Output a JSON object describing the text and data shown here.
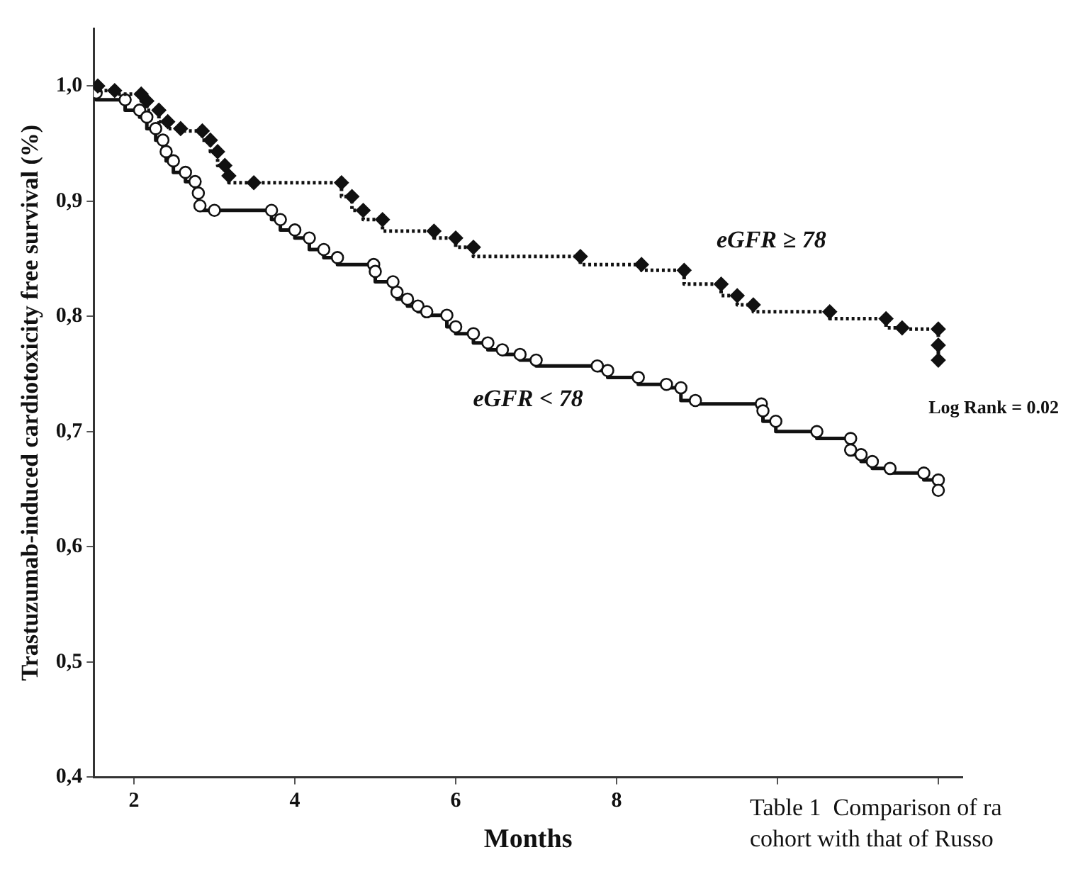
{
  "chart_data": {
    "type": "step",
    "xlabel": "Months",
    "ylabel": "Trastuzumab-induced cardiotoxicity free survival (%)",
    "xlim": [
      1.5,
      12.3
    ],
    "xticks": [
      2,
      4,
      6,
      8,
      {
        "value": 10,
        "label": null
      },
      {
        "value": 12,
        "label": null
      }
    ],
    "ylim": [
      0.4,
      1.05
    ],
    "yticks": [
      {
        "value": 0.4,
        "label": "0,4"
      },
      {
        "value": 0.5,
        "label": "0,5"
      },
      {
        "value": 0.6,
        "label": "0,6"
      },
      {
        "value": 0.7,
        "label": "0,7"
      },
      {
        "value": 0.8,
        "label": "0,8"
      },
      {
        "value": 0.9,
        "label": "0,9"
      },
      {
        "value": 1.0,
        "label": "1,0"
      }
    ],
    "series": [
      {
        "name": "eGFR ≥ 78",
        "color": "#111111",
        "marker": "diamond",
        "line_style": "dotted",
        "x": [
          1.55,
          1.76,
          2.09,
          2.16,
          2.31,
          2.42,
          2.58,
          2.85,
          2.95,
          3.04,
          3.13,
          3.18,
          3.49,
          4.58,
          4.71,
          4.85,
          5.09,
          5.73,
          6.0,
          6.22,
          7.55,
          8.31,
          8.84,
          9.3,
          9.5,
          9.7,
          10.65,
          11.35,
          11.55,
          12.0,
          12.0,
          12.0
        ],
        "values": [
          1.0,
          0.996,
          0.993,
          0.987,
          0.979,
          0.969,
          0.963,
          0.961,
          0.953,
          0.943,
          0.931,
          0.922,
          0.916,
          0.916,
          0.904,
          0.892,
          0.884,
          0.874,
          0.868,
          0.86,
          0.852,
          0.845,
          0.84,
          0.828,
          0.818,
          0.81,
          0.804,
          0.798,
          0.79,
          0.789,
          0.775,
          0.762
        ]
      },
      {
        "name": "eGFR < 78",
        "color": "#111111",
        "marker": "circle",
        "line_style": "solid",
        "x": [
          1.53,
          1.89,
          2.07,
          2.16,
          2.27,
          2.36,
          2.4,
          2.49,
          2.64,
          2.76,
          2.8,
          2.82,
          3.0,
          3.71,
          3.82,
          4.0,
          4.18,
          4.36,
          4.53,
          4.98,
          5.0,
          5.22,
          5.27,
          5.4,
          5.53,
          5.64,
          5.89,
          6.0,
          6.22,
          6.4,
          6.58,
          6.8,
          7.0,
          7.76,
          7.89,
          8.27,
          8.62,
          8.8,
          8.98,
          9.8,
          9.82,
          9.98,
          10.49,
          10.91,
          10.91,
          11.04,
          11.18,
          11.4,
          11.82,
          12.0,
          12.0
        ],
        "values": [
          0.994,
          0.988,
          0.979,
          0.973,
          0.963,
          0.953,
          0.943,
          0.935,
          0.925,
          0.917,
          0.907,
          0.896,
          0.892,
          0.892,
          0.884,
          0.875,
          0.868,
          0.858,
          0.851,
          0.845,
          0.839,
          0.83,
          0.821,
          0.815,
          0.809,
          0.804,
          0.801,
          0.791,
          0.785,
          0.777,
          0.771,
          0.767,
          0.762,
          0.757,
          0.753,
          0.747,
          0.741,
          0.738,
          0.727,
          0.724,
          0.718,
          0.709,
          0.7,
          0.694,
          0.684,
          0.68,
          0.674,
          0.668,
          0.664,
          0.658,
          0.649
        ]
      }
    ],
    "annotations": [
      "Log Rank = 0.02",
      "Table 1  Comparison of ra",
      "cohort with that of Russo"
    ]
  }
}
